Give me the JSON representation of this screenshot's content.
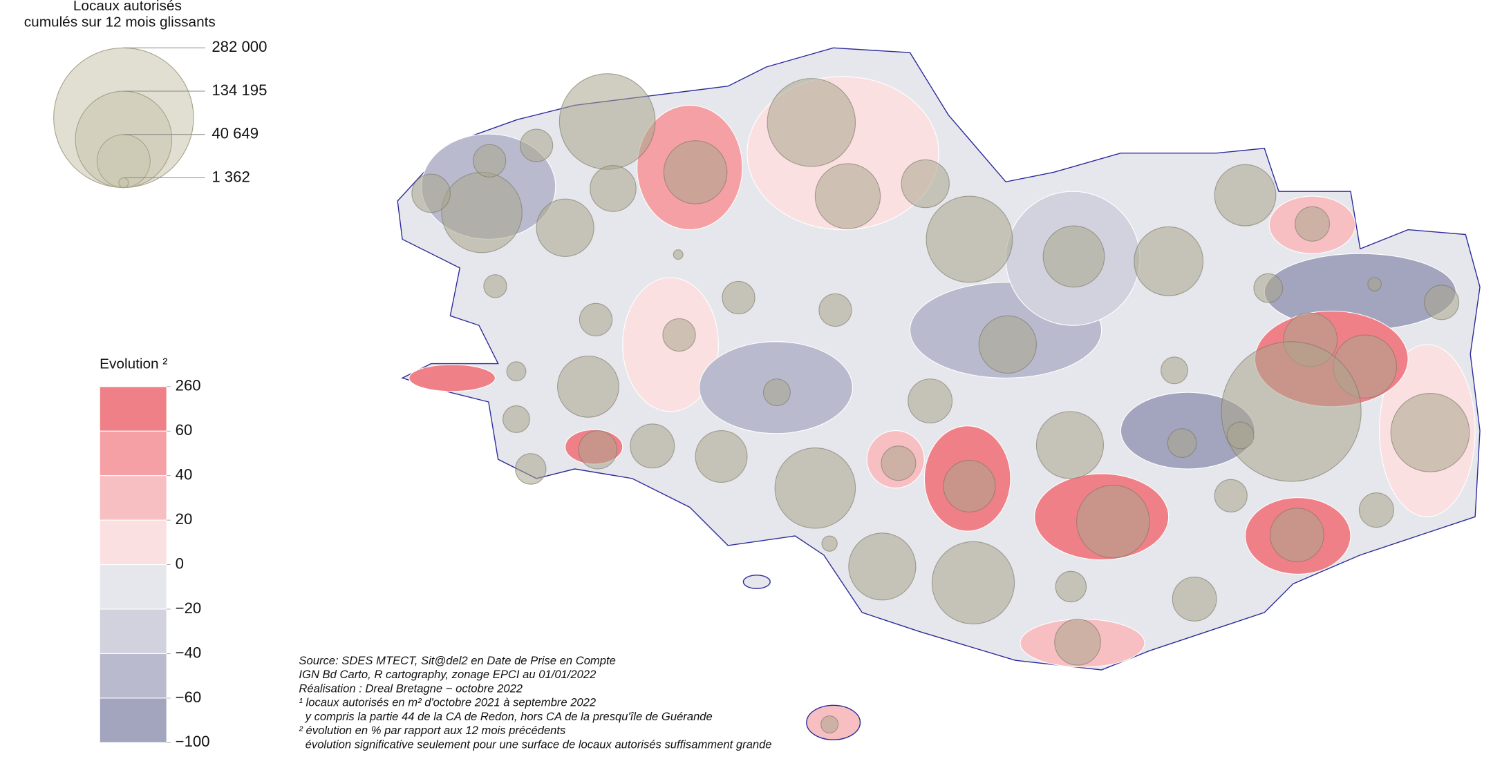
{
  "size_legend": {
    "title": [
      "Locaux autorisés",
      "cumulés sur 12 mois glissants"
    ],
    "values": [
      {
        "value": 282000,
        "label": "282 000"
      },
      {
        "value": 134195,
        "label": "134 195"
      },
      {
        "value": 40649,
        "label": "40 649"
      },
      {
        "value": 1362,
        "label": "1 362"
      }
    ],
    "color": "#c9c4ad"
  },
  "color_legend": {
    "title": "Evolution ²",
    "breaks": [
      260,
      60,
      40,
      20,
      0,
      {
        "value": -20,
        "label": "−20"
      },
      {
        "value": -40,
        "label": "−40"
      },
      {
        "value": -60,
        "label": "−60"
      },
      {
        "value": -100,
        "label": "−100"
      }
    ],
    "colors": [
      "#f08088",
      "#f4a0a5",
      "#f8bfc3",
      "#fbe0e2",
      "#e6e7ec",
      "#d1d2dd",
      "#b9bacd",
      "#a3a4bd"
    ]
  },
  "notes": [
    "Source: SDES MTECT, Sit@del2 en Date de Prise en Compte",
    "IGN Bd Carto, R cartography, zonage EPCI au 01/01/2022",
    "Réalisation : Dreal Bretagne − octobre 2022",
    "¹ locaux autorisés en m² d'octobre 2021 à septembre 2022",
    "  y compris la partie 44 de la CA de Redon, hors CA de la presqu'île de Guérande",
    "² évolution en % par rapport aux 12 mois précédents",
    "  évolution significative seulement pour une surface de locaux autorisés suffisamment grande"
  ]
}
